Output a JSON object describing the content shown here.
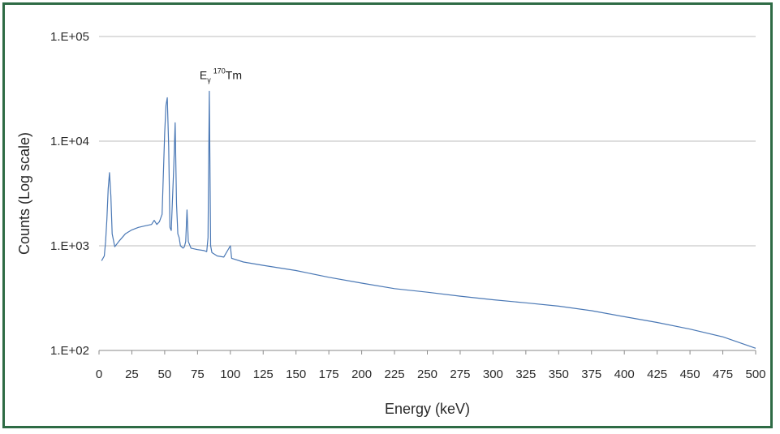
{
  "chart_data": {
    "type": "line",
    "xlabel": "Energy (keV)",
    "ylabel": "Counts (Log scale)",
    "xlim": [
      0,
      500
    ],
    "ylim": [
      100,
      100000
    ],
    "yscale": "log",
    "x_ticks": [
      0,
      25,
      50,
      75,
      100,
      125,
      150,
      175,
      200,
      225,
      250,
      275,
      300,
      325,
      350,
      375,
      400,
      425,
      450,
      475,
      500
    ],
    "y_ticks": [
      {
        "value": 100,
        "label": "1.E+02"
      },
      {
        "value": 1000,
        "label": "1.E+03"
      },
      {
        "value": 10000,
        "label": "1.E+04"
      },
      {
        "value": 100000,
        "label": "1.E+05"
      }
    ],
    "grid": "horizontal",
    "line_color": "#4a78b5",
    "annotation": {
      "base": "E",
      "sub": "γ",
      "sup": "170",
      "rest": "Tm",
      "x": 84,
      "y": 30000
    },
    "series": [
      {
        "name": "",
        "points": [
          [
            2,
            720
          ],
          [
            4,
            800
          ],
          [
            5,
            1100
          ],
          [
            6,
            1800
          ],
          [
            7,
            3500
          ],
          [
            8,
            5000
          ],
          [
            9,
            3000
          ],
          [
            10,
            1300
          ],
          [
            12,
            980
          ],
          [
            15,
            1100
          ],
          [
            20,
            1300
          ],
          [
            25,
            1420
          ],
          [
            30,
            1500
          ],
          [
            35,
            1550
          ],
          [
            40,
            1600
          ],
          [
            42,
            1750
          ],
          [
            44,
            1600
          ],
          [
            46,
            1700
          ],
          [
            48,
            2000
          ],
          [
            50,
            12000
          ],
          [
            51,
            22000
          ],
          [
            52,
            26000
          ],
          [
            53,
            9000
          ],
          [
            54,
            1500
          ],
          [
            55,
            1400
          ],
          [
            57,
            6000
          ],
          [
            58,
            15000
          ],
          [
            59,
            2500
          ],
          [
            60,
            1300
          ],
          [
            61,
            1200
          ],
          [
            62,
            1000
          ],
          [
            64,
            950
          ],
          [
            65,
            980
          ],
          [
            66,
            1100
          ],
          [
            67,
            2200
          ],
          [
            68,
            1100
          ],
          [
            70,
            950
          ],
          [
            75,
            920
          ],
          [
            80,
            900
          ],
          [
            82,
            880
          ],
          [
            83,
            1200
          ],
          [
            84,
            30000
          ],
          [
            85,
            1000
          ],
          [
            86,
            860
          ],
          [
            90,
            800
          ],
          [
            95,
            780
          ],
          [
            100,
            1000
          ],
          [
            101,
            760
          ],
          [
            110,
            700
          ],
          [
            125,
            650
          ],
          [
            150,
            580
          ],
          [
            175,
            500
          ],
          [
            200,
            440
          ],
          [
            225,
            390
          ],
          [
            250,
            360
          ],
          [
            275,
            330
          ],
          [
            300,
            305
          ],
          [
            325,
            285
          ],
          [
            350,
            265
          ],
          [
            375,
            240
          ],
          [
            400,
            210
          ],
          [
            425,
            185
          ],
          [
            450,
            160
          ],
          [
            475,
            135
          ],
          [
            500,
            105
          ]
        ]
      }
    ]
  }
}
